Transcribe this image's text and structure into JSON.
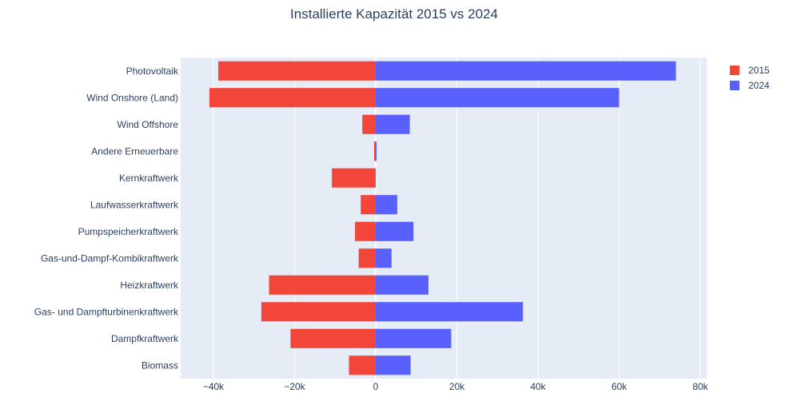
{
  "chart_data": {
    "type": "bar",
    "orientation": "horizontal",
    "title": "Installierte Kapazität 2015 vs 2024",
    "xlabel": "",
    "ylabel": "",
    "xlim": [
      -47000,
      80500
    ],
    "x_ticks": [
      "−40k",
      "−20k",
      "0",
      "20k",
      "40k",
      "60k",
      "80k"
    ],
    "x_tick_values": [
      -40000,
      -20000,
      0,
      20000,
      40000,
      60000,
      80000
    ],
    "categories": [
      "Photovoltaik",
      "Wind Onshore (Land)",
      "Wind Offshore",
      "Andere Erneuerbare",
      "Kernkraftwerk",
      "Laufwasserkraftwerk",
      "Pumpspeicherkraftwerk",
      "Gas-und-Dampf-Kombikraftwerk",
      "Heizkraftwerk",
      "Gas- und Dampfturbinenkraftwerk",
      "Dampfkraftwerk",
      "Biomass"
    ],
    "series": [
      {
        "name": "2015",
        "color": "#f2463b",
        "values": [
          -38800,
          -41000,
          -3300,
          -400,
          -10800,
          -3700,
          -5100,
          -4200,
          -26300,
          -28200,
          -21000,
          -6600
        ]
      },
      {
        "name": "2024",
        "color": "#5a60fb",
        "values": [
          74000,
          60000,
          8400,
          200,
          0,
          5300,
          9300,
          3900,
          13000,
          36300,
          18600,
          8600
        ]
      }
    ],
    "grid": true,
    "legend_position": "top-right",
    "plot_background": "#e5ecf6"
  }
}
